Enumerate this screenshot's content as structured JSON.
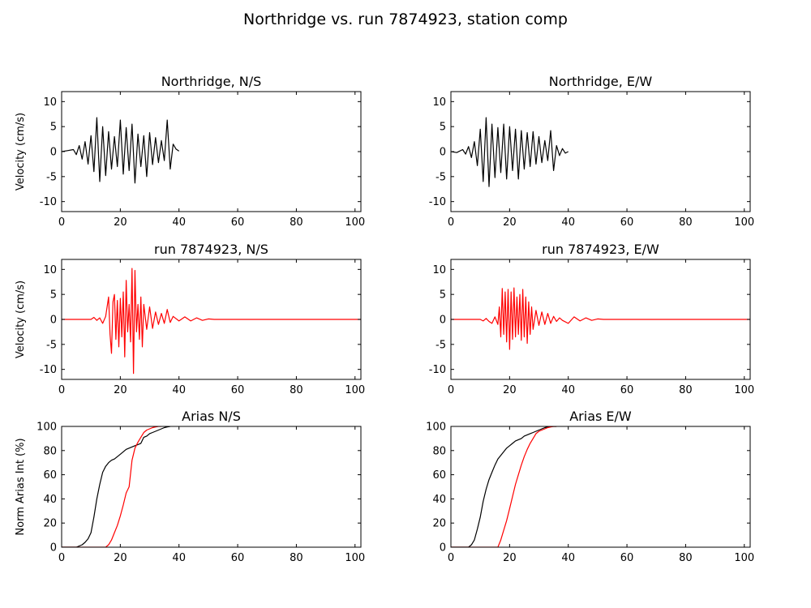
{
  "figure": {
    "title": "Northridge vs. run 7874923, station comp"
  },
  "chart_data": [
    {
      "type": "line",
      "title": "Northridge, N/S",
      "ylabel": "Velocity (cm/s)",
      "xlim": [
        0,
        102
      ],
      "ylim": [
        -12,
        12
      ],
      "xticks": [
        0,
        20,
        40,
        60,
        80,
        100
      ],
      "yticks": [
        -10,
        -5,
        0,
        5,
        10
      ],
      "series": [
        {
          "color": "#000000",
          "x": [
            0,
            2,
            4,
            5,
            6,
            7,
            8,
            9,
            10,
            11,
            12,
            13,
            14,
            15,
            16,
            17,
            18,
            19,
            20,
            21,
            22,
            23,
            24,
            25,
            26,
            27,
            28,
            29,
            30,
            31,
            32,
            33,
            34,
            35,
            36,
            37,
            38,
            39,
            40
          ],
          "y": [
            0,
            0.2,
            0.4,
            -0.6,
            1.2,
            -1.5,
            2.0,
            -2.5,
            3.2,
            -4.0,
            6.8,
            -6.0,
            5.0,
            -4.8,
            4.0,
            -3.5,
            3.0,
            -3.0,
            6.3,
            -4.5,
            4.8,
            -3.8,
            5.5,
            -6.3,
            3.5,
            -3.0,
            3.2,
            -5.0,
            3.8,
            -2.6,
            2.8,
            -2.2,
            2.2,
            -1.8,
            6.3,
            -3.5,
            1.5,
            0.5,
            0.1
          ]
        }
      ]
    },
    {
      "type": "line",
      "title": "Northridge, E/W",
      "ylabel": "",
      "xlim": [
        0,
        102
      ],
      "ylim": [
        -12,
        12
      ],
      "xticks": [
        0,
        20,
        40,
        60,
        80,
        100
      ],
      "yticks": [
        -10,
        -5,
        0,
        5,
        10
      ],
      "series": [
        {
          "color": "#000000",
          "x": [
            0,
            2,
            4,
            5,
            6,
            7,
            8,
            9,
            10,
            11,
            12,
            13,
            14,
            15,
            16,
            17,
            18,
            19,
            20,
            21,
            22,
            23,
            24,
            25,
            26,
            27,
            28,
            29,
            30,
            31,
            32,
            33,
            34,
            35,
            36,
            37,
            38,
            39,
            40
          ],
          "y": [
            0,
            -0.2,
            0.4,
            -0.5,
            1.0,
            -1.2,
            2.0,
            -2.8,
            4.5,
            -6.0,
            6.8,
            -7.0,
            5.5,
            -5.2,
            4.8,
            -4.2,
            5.5,
            -5.5,
            5.0,
            -3.8,
            4.5,
            -5.5,
            4.2,
            -3.5,
            3.8,
            -3.0,
            4.0,
            -2.5,
            3.0,
            -2.2,
            2.2,
            -1.8,
            4.2,
            -3.8,
            1.2,
            -0.8,
            0.6,
            -0.3,
            0.0
          ]
        }
      ]
    },
    {
      "type": "line",
      "title": "run 7874923, N/S",
      "ylabel": "Velocity (cm/s)",
      "xlim": [
        0,
        102
      ],
      "ylim": [
        -12,
        12
      ],
      "xticks": [
        0,
        20,
        40,
        60,
        80,
        100
      ],
      "yticks": [
        -10,
        -5,
        0,
        5,
        10
      ],
      "series": [
        {
          "color": "#ff0000",
          "x": [
            0,
            10,
            11,
            12,
            13,
            14,
            15,
            16,
            16.5,
            17,
            17.5,
            18,
            18.5,
            19,
            19.5,
            20,
            20.5,
            21,
            21.5,
            22,
            22.5,
            23,
            23.5,
            24,
            24.5,
            25,
            25.5,
            26,
            26.5,
            27,
            27.5,
            28,
            29,
            30,
            31,
            32,
            33,
            34,
            35,
            36,
            37,
            38,
            40,
            42,
            44,
            46,
            48,
            50,
            52,
            55,
            60,
            102
          ],
          "y": [
            0,
            0,
            0.4,
            -0.2,
            0.3,
            -0.8,
            0.6,
            4.5,
            -3.0,
            -6.8,
            3.5,
            5.0,
            -4.0,
            3.8,
            -5.5,
            4.2,
            -3.5,
            5.5,
            -7.5,
            7.8,
            -2.5,
            3.0,
            -4.5,
            10.2,
            -10.8,
            9.8,
            -2.5,
            3.0,
            -4.0,
            4.5,
            -5.5,
            3.0,
            -2.0,
            2.5,
            -1.8,
            1.5,
            -1.0,
            1.2,
            -0.8,
            2.0,
            -0.6,
            0.6,
            -0.3,
            0.5,
            -0.3,
            0.3,
            -0.2,
            0.1,
            0,
            0,
            0,
            0
          ]
        }
      ]
    },
    {
      "type": "line",
      "title": "run 7874923, E/W",
      "ylabel": "",
      "xlim": [
        0,
        102
      ],
      "ylim": [
        -12,
        12
      ],
      "xticks": [
        0,
        20,
        40,
        60,
        80,
        100
      ],
      "yticks": [
        -10,
        -5,
        0,
        5,
        10
      ],
      "series": [
        {
          "color": "#ff0000",
          "x": [
            0,
            10,
            11,
            12,
            13,
            14,
            15,
            16,
            16.5,
            17,
            17.5,
            18,
            18.5,
            19,
            19.5,
            20,
            20.5,
            21,
            21.5,
            22,
            22.5,
            23,
            23.5,
            24,
            24.5,
            25,
            25.5,
            26,
            26.5,
            27,
            27.5,
            28,
            29,
            30,
            31,
            32,
            33,
            34,
            35,
            36,
            37,
            38,
            40,
            42,
            44,
            46,
            48,
            50,
            52,
            55,
            60,
            102
          ],
          "y": [
            0,
            0,
            -0.3,
            0.2,
            -0.4,
            -0.8,
            0.5,
            -1.0,
            2.5,
            -3.5,
            6.2,
            -3.0,
            5.5,
            -4.5,
            6.0,
            -6.0,
            5.5,
            -4.0,
            6.3,
            -3.5,
            4.5,
            -3.0,
            5.0,
            -4.2,
            6.0,
            -3.5,
            4.5,
            -4.8,
            3.5,
            -3.0,
            2.5,
            -2.0,
            1.8,
            -1.2,
            1.5,
            -1.0,
            1.2,
            -0.8,
            0.6,
            -0.4,
            0.3,
            -0.2,
            -0.8,
            0.5,
            -0.3,
            0.3,
            -0.2,
            0.1,
            0,
            0,
            0,
            0
          ]
        }
      ]
    },
    {
      "type": "line",
      "title": "Arias N/S",
      "ylabel": "Norm Arias Int (%)",
      "xlim": [
        0,
        102
      ],
      "ylim": [
        0,
        100
      ],
      "xticks": [
        0,
        20,
        40,
        60,
        80,
        100
      ],
      "yticks": [
        0,
        20,
        40,
        60,
        80,
        100
      ],
      "series": [
        {
          "color": "#000000",
          "x": [
            0,
            5,
            6,
            7,
            8,
            9,
            10,
            11,
            12,
            13,
            14,
            15,
            16,
            17,
            18,
            19,
            20,
            21,
            22,
            23,
            24,
            25,
            26,
            27,
            28,
            29,
            30,
            31,
            32,
            33,
            34,
            35,
            36,
            37
          ],
          "y": [
            0,
            0,
            1,
            2,
            4,
            7,
            12,
            25,
            40,
            52,
            62,
            67,
            70,
            72,
            73,
            75,
            77,
            79,
            81,
            82,
            83,
            84,
            85,
            86,
            91,
            92,
            94,
            95,
            96,
            97,
            98,
            99,
            99.5,
            100
          ]
        },
        {
          "color": "#ff0000",
          "x": [
            0,
            15,
            16,
            17,
            18,
            19,
            20,
            21,
            22,
            23,
            24,
            25,
            26,
            27,
            28,
            29,
            30,
            31,
            32,
            33,
            34
          ],
          "y": [
            0,
            0,
            2,
            6,
            12,
            18,
            26,
            35,
            45,
            50,
            72,
            82,
            87,
            91,
            95,
            97,
            98,
            99,
            99.5,
            100,
            100
          ]
        }
      ]
    },
    {
      "type": "line",
      "title": "Arias E/W",
      "ylabel": "",
      "xlim": [
        0,
        102
      ],
      "ylim": [
        0,
        100
      ],
      "xticks": [
        0,
        20,
        40,
        60,
        80,
        100
      ],
      "yticks": [
        0,
        20,
        40,
        60,
        80,
        100
      ],
      "series": [
        {
          "color": "#000000",
          "x": [
            0,
            6,
            7,
            8,
            9,
            10,
            11,
            12,
            13,
            14,
            15,
            16,
            17,
            18,
            19,
            20,
            21,
            22,
            23,
            24,
            25,
            26,
            27,
            28,
            29,
            30,
            31,
            32,
            33,
            34,
            35,
            36
          ],
          "y": [
            0,
            0,
            2,
            6,
            15,
            25,
            38,
            48,
            56,
            62,
            68,
            73,
            76,
            79,
            82,
            84,
            86,
            88,
            89,
            90,
            92,
            93,
            94,
            95,
            96,
            97,
            98,
            99,
            99.5,
            100,
            100,
            100
          ]
        },
        {
          "color": "#ff0000",
          "x": [
            0,
            16,
            17,
            18,
            19,
            20,
            21,
            22,
            23,
            24,
            25,
            26,
            27,
            28,
            29,
            30,
            31,
            32,
            33,
            34,
            35,
            36
          ],
          "y": [
            0,
            0,
            6,
            14,
            22,
            32,
            42,
            52,
            60,
            68,
            75,
            81,
            86,
            90,
            94,
            96,
            97,
            98,
            99,
            99.5,
            100,
            100
          ]
        }
      ]
    }
  ]
}
